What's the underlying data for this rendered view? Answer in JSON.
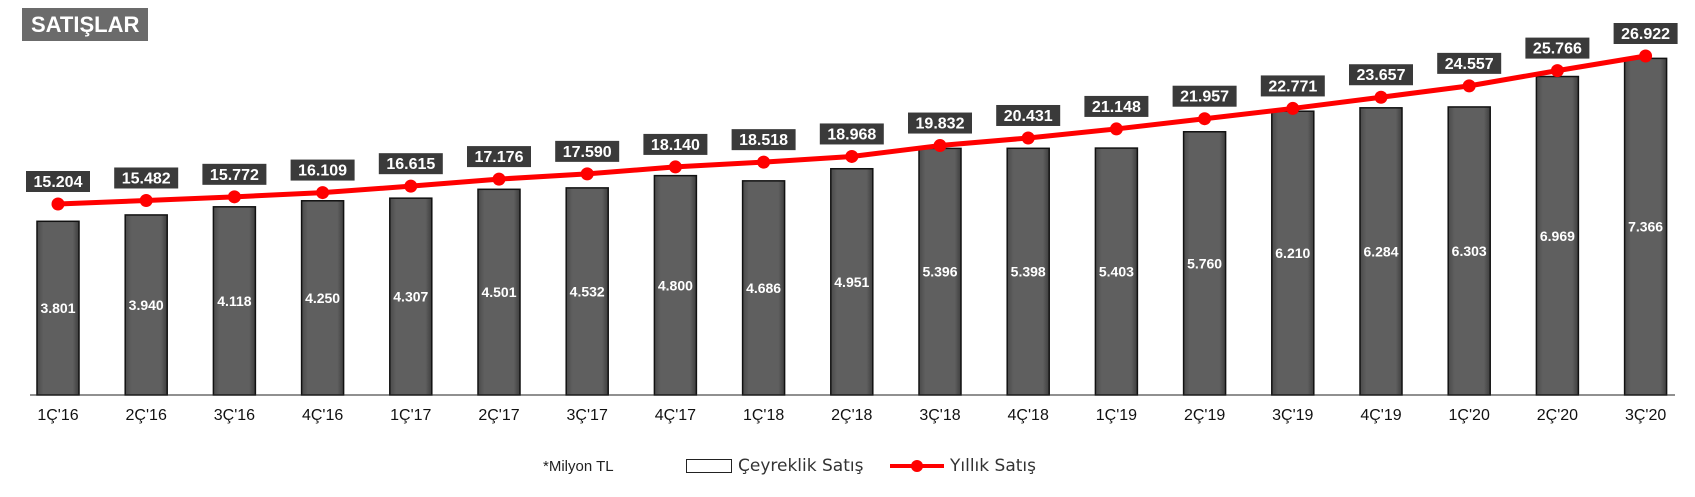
{
  "title": "SATIŞLAR",
  "note": "*Milyon TL",
  "colors": {
    "bar_fill": "#5f5f5f",
    "line": "#ff0000",
    "label_box": "#3a3a3a",
    "title_badge": "#6b6b6b"
  },
  "chart_data": {
    "type": "bar",
    "categories": [
      "1Ç'16",
      "2Ç'16",
      "3Ç'16",
      "4Ç'16",
      "1Ç'17",
      "2Ç'17",
      "3Ç'17",
      "4Ç'17",
      "1Ç'18",
      "2Ç'18",
      "3Ç'18",
      "4Ç'18",
      "1Ç'19",
      "2Ç'19",
      "3Ç'19",
      "4Ç'19",
      "1Ç'20",
      "2Ç'20",
      "3Ç'20"
    ],
    "series": [
      {
        "name": "Çeyreklik Satış",
        "type": "bar",
        "values": [
          3801,
          3940,
          4118,
          4250,
          4307,
          4501,
          4532,
          4800,
          4686,
          4951,
          5396,
          5398,
          5403,
          5760,
          6210,
          6284,
          6303,
          6969,
          7366
        ],
        "labels": [
          "3.801",
          "3.940",
          "4.118",
          "4.250",
          "4.307",
          "4.501",
          "4.532",
          "4.800",
          "4.686",
          "4.951",
          "5.396",
          "5.398",
          "5.403",
          "5.760",
          "6.210",
          "6.284",
          "6.303",
          "6.969",
          "7.366"
        ]
      },
      {
        "name": "Yıllık Satış",
        "type": "line",
        "values": [
          15204,
          15482,
          15772,
          16109,
          16615,
          17176,
          17590,
          18140,
          18518,
          18968,
          19832,
          20431,
          21148,
          21957,
          22771,
          23657,
          24557,
          25766,
          26922
        ],
        "labels": [
          "15.204",
          "15.482",
          "15.772",
          "16.109",
          "16.615",
          "17.176",
          "17.590",
          "18.140",
          "18.518",
          "18.968",
          "19.832",
          "20.431",
          "21.148",
          "21.957",
          "22.771",
          "23.657",
          "24.557",
          "25.766",
          "26.922"
        ]
      }
    ],
    "legend_position": "bottom",
    "grid": false
  }
}
